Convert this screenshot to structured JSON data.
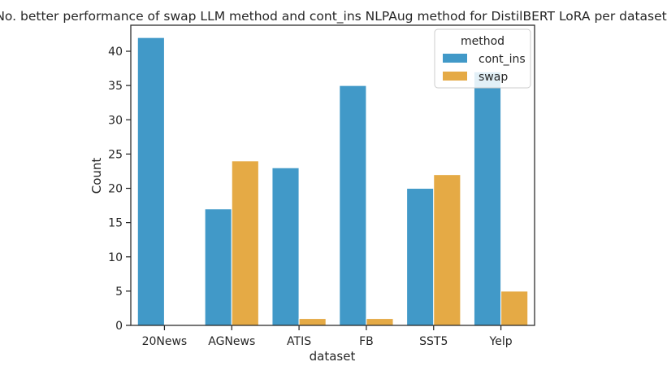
{
  "chart_data": {
    "type": "bar",
    "title": "No. better performance of swap LLM method and cont_ins NLPAug method for DistilBERT LoRA per dataset.",
    "xlabel": "dataset",
    "ylabel": "Count",
    "categories": [
      "20News",
      "AGNews",
      "ATIS",
      "FB",
      "SST5",
      "Yelp"
    ],
    "series": [
      {
        "name": "cont_ins",
        "color": "#4199c8",
        "values": [
          42,
          17,
          23,
          35,
          20,
          37
        ]
      },
      {
        "name": "swap",
        "color": "#e5aa45",
        "values": [
          0,
          24,
          1,
          1,
          22,
          5
        ]
      }
    ],
    "ylim": [
      0,
      43.8
    ],
    "yticks": [
      0,
      5,
      10,
      15,
      20,
      25,
      30,
      35,
      40
    ],
    "grid": false,
    "legend": {
      "title": "method",
      "placement": "top-right"
    }
  }
}
